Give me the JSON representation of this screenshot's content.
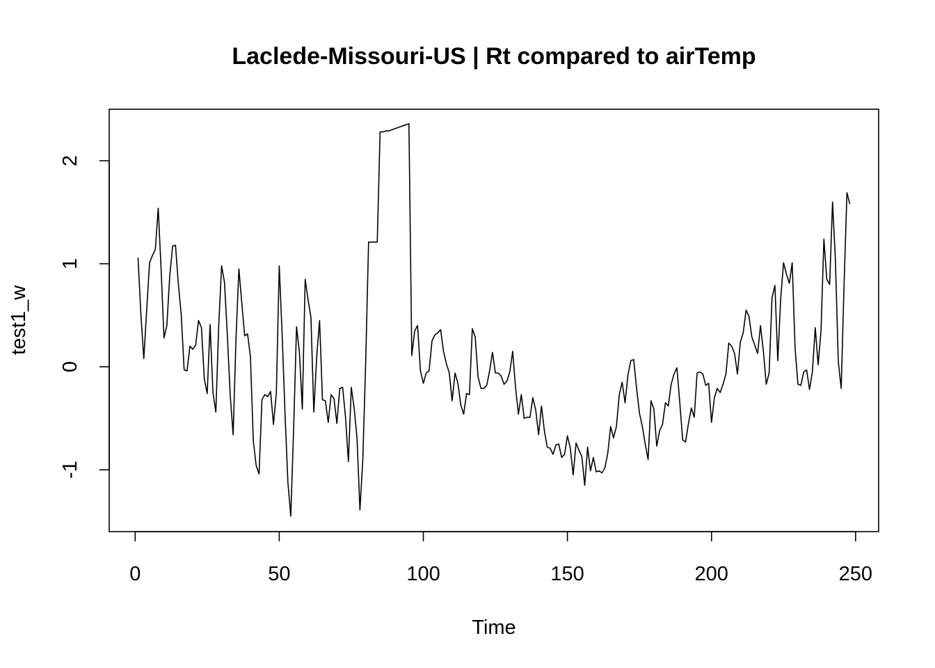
{
  "chart_data": {
    "type": "line",
    "title": "Laclede-Missouri-US | Rt compared to airTemp",
    "xlabel": "Time",
    "ylabel": "test1_w",
    "xlim": [
      -9,
      258
    ],
    "ylim": [
      -1.6,
      2.5
    ],
    "x_ticks": [
      0,
      50,
      100,
      150,
      200,
      250
    ],
    "y_ticks": [
      -1,
      0,
      1,
      2
    ],
    "x_tick_labels": [
      "0",
      "50",
      "100",
      "150",
      "200",
      "250"
    ],
    "y_tick_labels": [
      "-1",
      "0",
      "1",
      "2"
    ],
    "grid": false,
    "line_color": "#000000",
    "series": [
      {
        "x_start": 1,
        "x_step": 1,
        "values": [
          1.06,
          0.5,
          0.08,
          0.55,
          1.01,
          1.08,
          1.14,
          1.54,
          0.95,
          0.28,
          0.4,
          0.88,
          1.17,
          1.18,
          0.8,
          0.5,
          -0.03,
          -0.04,
          0.2,
          0.17,
          0.21,
          0.45,
          0.38,
          -0.12,
          -0.26,
          0.41,
          -0.25,
          -0.44,
          0.4,
          0.98,
          0.82,
          0.3,
          -0.28,
          -0.66,
          0.28,
          0.95,
          0.62,
          0.3,
          0.32,
          0.1,
          -0.72,
          -0.96,
          -1.04,
          -0.32,
          -0.27,
          -0.29,
          -0.24,
          -0.56,
          -0.25,
          0.98,
          0.32,
          -0.45,
          -1.12,
          -1.45,
          -0.6,
          0.39,
          0.14,
          -0.41,
          0.85,
          0.65,
          0.48,
          -0.44,
          0.1,
          0.45,
          -0.32,
          -0.33,
          -0.54,
          -0.27,
          -0.31,
          -0.55,
          -0.21,
          -0.2,
          -0.49,
          -0.92,
          -0.2,
          -0.4,
          -0.7,
          -1.39,
          -0.9,
          0.05,
          1.21,
          1.21,
          1.21,
          1.21,
          2.28,
          2.28,
          2.29,
          2.29,
          2.3,
          2.31,
          2.32,
          2.33,
          2.34,
          2.35,
          2.36,
          0.11,
          0.35,
          0.4,
          -0.04,
          -0.16,
          -0.06,
          -0.04,
          0.25,
          0.31,
          0.33,
          0.36,
          0.15,
          0.03,
          -0.06,
          -0.33,
          -0.06,
          -0.16,
          -0.37,
          -0.46,
          -0.26,
          -0.27,
          0.37,
          0.29,
          -0.1,
          -0.21,
          -0.21,
          -0.18,
          -0.04,
          0.14,
          -0.06,
          -0.06,
          -0.09,
          -0.17,
          -0.14,
          -0.05,
          0.15,
          -0.2,
          -0.46,
          -0.27,
          -0.5,
          -0.49,
          -0.49,
          -0.3,
          -0.42,
          -0.66,
          -0.38,
          -0.62,
          -0.78,
          -0.79,
          -0.85,
          -0.76,
          -0.75,
          -0.88,
          -0.85,
          -0.67,
          -0.79,
          -1.05,
          -0.74,
          -0.81,
          -0.87,
          -1.15,
          -0.78,
          -1.01,
          -0.88,
          -1.02,
          -1.01,
          -1.03,
          -0.98,
          -0.84,
          -0.58,
          -0.69,
          -0.58,
          -0.27,
          -0.15,
          -0.35,
          -0.08,
          0.06,
          0.07,
          -0.21,
          -0.45,
          -0.58,
          -0.75,
          -0.9,
          -0.33,
          -0.41,
          -0.77,
          -0.62,
          -0.56,
          -0.35,
          -0.38,
          -0.17,
          -0.07,
          -0.01,
          -0.35,
          -0.71,
          -0.73,
          -0.55,
          -0.4,
          -0.49,
          -0.06,
          -0.05,
          -0.07,
          -0.18,
          -0.16,
          -0.54,
          -0.3,
          -0.21,
          -0.25,
          -0.17,
          -0.07,
          0.23,
          0.2,
          0.13,
          -0.07,
          0.24,
          0.33,
          0.55,
          0.49,
          0.29,
          0.21,
          0.13,
          0.4,
          0.15,
          -0.17,
          -0.06,
          0.67,
          0.79,
          0.06,
          0.66,
          1.01,
          0.9,
          0.81,
          1.01,
          0.18,
          -0.17,
          -0.18,
          -0.05,
          -0.03,
          -0.22,
          -0.05,
          0.38,
          0.02,
          0.35,
          1.24,
          0.85,
          0.8,
          1.6,
          1.03,
          0.05,
          -0.21,
          0.8,
          1.69,
          1.58
        ]
      }
    ]
  }
}
